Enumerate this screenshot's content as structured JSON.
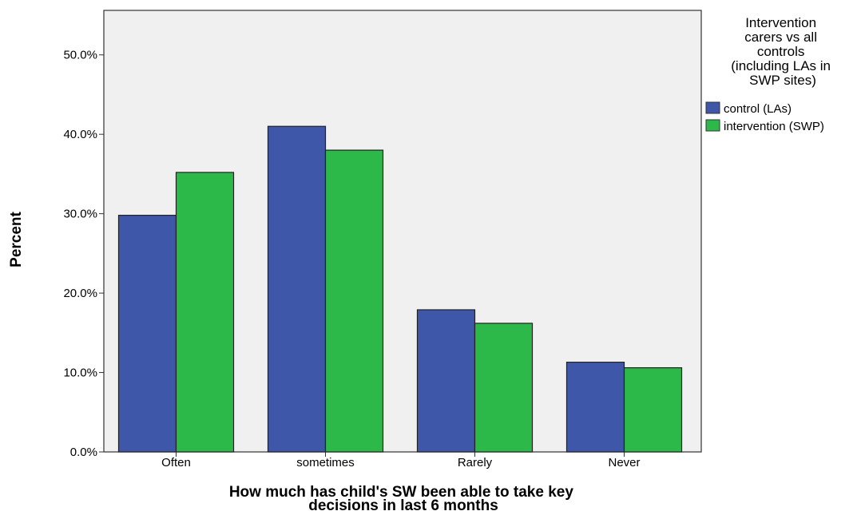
{
  "chart_data": {
    "type": "bar",
    "categories": [
      "Often",
      "sometimes",
      "Rarely",
      "Never"
    ],
    "series": [
      {
        "name": "control (LAs)",
        "color": "#3f57a8",
        "values": [
          29.8,
          41.0,
          17.9,
          11.3
        ]
      },
      {
        "name": "intervention (SWP)",
        "color": "#2db84a",
        "values": [
          35.2,
          38.0,
          16.2,
          10.6
        ]
      }
    ],
    "xlabel": [
      "How much has child's SW been able to take key",
      "decisions in last 6 months"
    ],
    "ylabel": "Percent",
    "ylim": [
      0,
      55
    ],
    "yticks": [
      "0.0%",
      "10.0%",
      "20.0%",
      "30.0%",
      "40.0%",
      "50.0%"
    ],
    "ytick_values": [
      0,
      10,
      20,
      30,
      40,
      50
    ],
    "legend": {
      "title": [
        "Intervention",
        "carers vs all",
        "controls",
        "(including LAs in",
        "SWP sites)"
      ],
      "placement": "right"
    },
    "grid": false,
    "plot_background": "#f0f0f0"
  }
}
